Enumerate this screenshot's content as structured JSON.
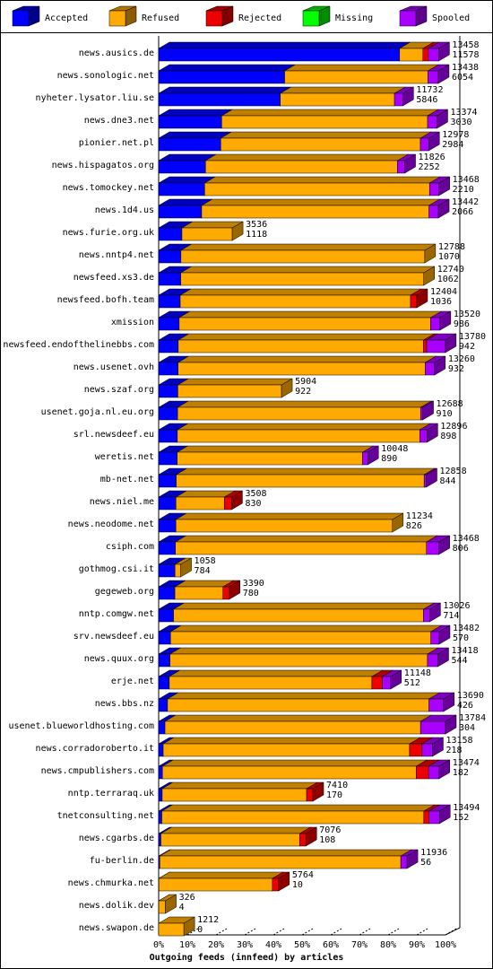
{
  "chart_data": {
    "type": "bar",
    "orientation": "horizontal",
    "stacked": true,
    "x_label": "Outgoing feeds (innfeed) by articles",
    "categories": [
      "news.ausics.de",
      "news.sonologic.net",
      "nyheter.lysator.liu.se",
      "news.dne3.net",
      "pionier.net.pl",
      "news.hispagatos.org",
      "news.tomockey.net",
      "news.1d4.us",
      "news.furie.org.uk",
      "news.nntp4.net",
      "newsfeed.xs3.de",
      "newsfeed.bofh.team",
      "xmission",
      "newsfeed.endofthelinebbs.com",
      "news.usenet.ovh",
      "news.szaf.org",
      "usenet.goja.nl.eu.org",
      "srl.newsdeef.eu",
      "weretis.net",
      "mb-net.net",
      "news.niel.me",
      "news.neodome.net",
      "csiph.com",
      "gothmog.csi.it",
      "gegeweb.org",
      "nntp.comgw.net",
      "srv.newsdeef.eu",
      "news.quux.org",
      "erje.net",
      "news.bbs.nz",
      "usenet.blueworldhosting.com",
      "news.corradoroberto.it",
      "news.cmpublishers.com",
      "nntp.terraraq.uk",
      "tnetconsulting.net",
      "news.cgarbs.de",
      "fu-berlin.de",
      "news.chmurka.net",
      "news.dolik.dev",
      "news.swapon.de"
    ],
    "totals": [
      13458,
      13438,
      11732,
      13374,
      12978,
      11826,
      13468,
      13442,
      3536,
      12788,
      12740,
      12404,
      13520,
      13780,
      13260,
      5904,
      12688,
      12896,
      10048,
      12858,
      3508,
      11234,
      13468,
      1058,
      3390,
      13026,
      13482,
      13418,
      11148,
      13690,
      13784,
      13158,
      13474,
      7410,
      13494,
      7076,
      11936,
      5764,
      326,
      1212
    ],
    "series": [
      {
        "name": "Accepted",
        "color": "#0000ff",
        "values": [
          11578,
          6054,
          5846,
          3030,
          2984,
          2252,
          2210,
          2066,
          1118,
          1070,
          1062,
          1036,
          986,
          942,
          932,
          922,
          910,
          898,
          890,
          844,
          830,
          826,
          806,
          784,
          780,
          714,
          570,
          544,
          512,
          426,
          304,
          218,
          182,
          170,
          152,
          108,
          56,
          10,
          4,
          0
        ]
      },
      {
        "name": "Refused",
        "color": "#ffaa00",
        "values": [
          1120,
          6884,
          5486,
          9894,
          9594,
          9224,
          10808,
          10926,
          2418,
          11718,
          11678,
          11068,
          12084,
          11788,
          11878,
          4982,
          11678,
          11648,
          8908,
          11914,
          2328,
          10408,
          12062,
          274,
          2310,
          12012,
          12512,
          12374,
          9736,
          12564,
          12280,
          11840,
          12192,
          6940,
          12592,
          6668,
          11580,
          5454,
          322,
          1212
        ]
      },
      {
        "name": "Rejected",
        "color": "#ee0000",
        "values": [
          260,
          0,
          0,
          0,
          0,
          0,
          0,
          0,
          0,
          0,
          0,
          300,
          0,
          150,
          0,
          0,
          0,
          0,
          0,
          0,
          350,
          0,
          0,
          0,
          300,
          0,
          0,
          0,
          500,
          0,
          0,
          600,
          600,
          300,
          250,
          300,
          0,
          300,
          0,
          0
        ]
      },
      {
        "name": "Missing",
        "color": "#00ff00",
        "values": [
          0,
          0,
          0,
          0,
          0,
          0,
          0,
          0,
          0,
          0,
          0,
          0,
          0,
          0,
          0,
          0,
          0,
          0,
          0,
          0,
          0,
          0,
          0,
          0,
          0,
          0,
          0,
          0,
          0,
          0,
          0,
          0,
          0,
          0,
          0,
          0,
          0,
          0,
          0,
          0
        ]
      },
      {
        "name": "Spooled",
        "color": "#aa00ff",
        "values": [
          500,
          500,
          400,
          450,
          400,
          350,
          450,
          450,
          0,
          0,
          0,
          0,
          450,
          900,
          450,
          0,
          100,
          350,
          250,
          100,
          0,
          0,
          600,
          0,
          0,
          300,
          400,
          500,
          400,
          700,
          1200,
          500,
          500,
          0,
          500,
          0,
          300,
          0,
          0,
          0
        ]
      }
    ],
    "xlim": [
      0,
      13784
    ],
    "xticks": [
      {
        "value": 0,
        "label": "0%"
      },
      {
        "value": 1378.4,
        "label": "10%"
      },
      {
        "value": 2756.8,
        "label": "20%"
      },
      {
        "value": 4135.2,
        "label": "30%"
      },
      {
        "value": 5513.6,
        "label": "40%"
      },
      {
        "value": 6892,
        "label": "50%"
      },
      {
        "value": 8270.4,
        "label": "60%"
      },
      {
        "value": 9648.8,
        "label": "70%"
      },
      {
        "value": 11027.2,
        "label": "80%"
      },
      {
        "value": 12405.6,
        "label": "90%"
      },
      {
        "value": 13784,
        "label": "100%"
      }
    ],
    "grid": false
  }
}
